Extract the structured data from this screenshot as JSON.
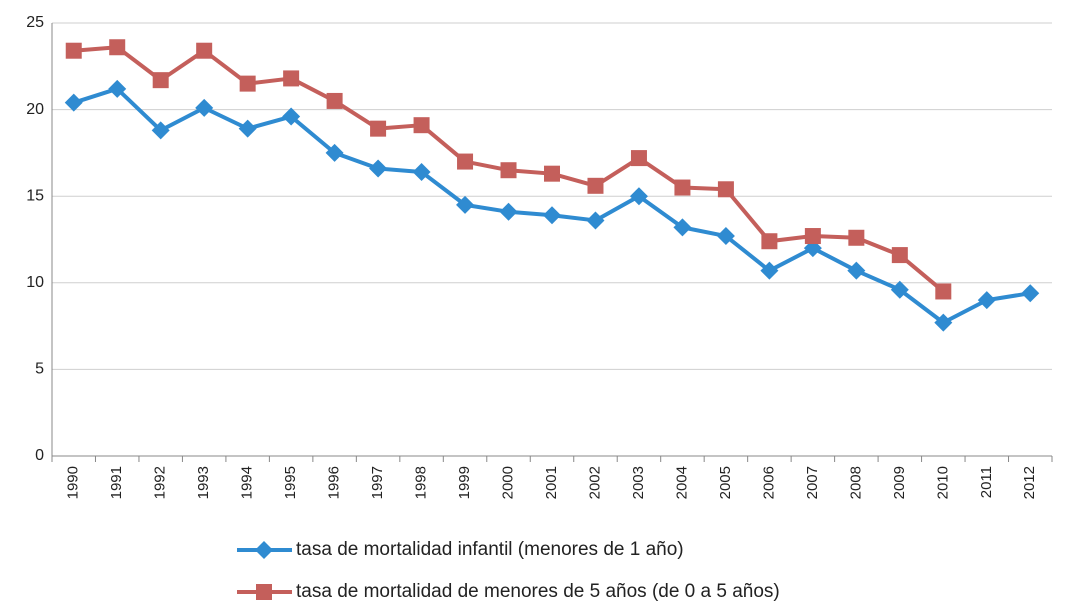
{
  "chart_data": {
    "type": "line",
    "categories": [
      "1990",
      "1991",
      "1992",
      "1993",
      "1994",
      "1995",
      "1996",
      "1997",
      "1998",
      "1999",
      "2000",
      "2001",
      "2002",
      "2003",
      "2004",
      "2005",
      "2006",
      "2007",
      "2008",
      "2009",
      "2010",
      "2011",
      "2012"
    ],
    "series": [
      {
        "name": "tasa de mortalidad infantil (menores de 1 año)",
        "color": "#2f8bd1",
        "marker": "diamond",
        "values": [
          20.4,
          21.2,
          18.8,
          20.1,
          18.9,
          19.6,
          17.5,
          16.6,
          16.4,
          14.5,
          14.1,
          13.9,
          13.6,
          15.0,
          13.2,
          12.7,
          10.7,
          12.0,
          10.7,
          9.6,
          7.7,
          9.0,
          9.4
        ]
      },
      {
        "name": "tasa de mortalidad de menores de 5 años (de 0 a 5 años)",
        "color": "#c45f5b",
        "marker": "square",
        "values": [
          23.4,
          23.6,
          21.7,
          23.4,
          21.5,
          21.8,
          20.5,
          18.9,
          19.1,
          17.0,
          16.5,
          16.3,
          15.6,
          17.2,
          15.5,
          15.4,
          12.4,
          12.7,
          12.6,
          11.6,
          9.5,
          null,
          null
        ]
      }
    ],
    "ylim": [
      0,
      25
    ],
    "yticks": [
      0,
      5,
      10,
      15,
      20,
      25
    ],
    "grid": true,
    "legend": "bottom"
  }
}
